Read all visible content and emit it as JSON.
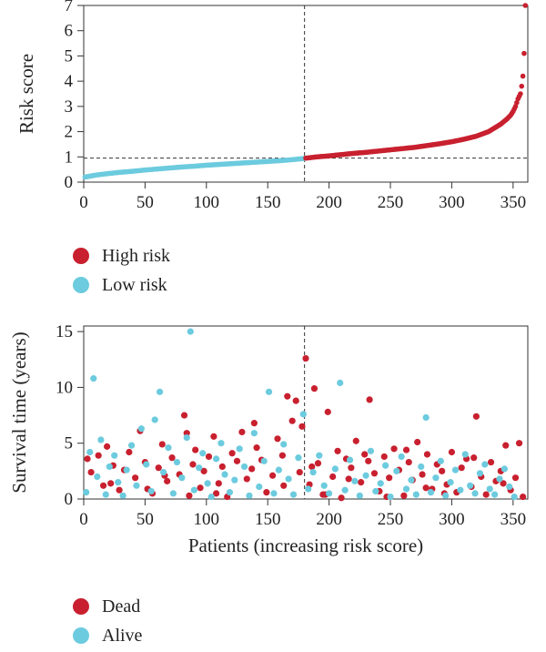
{
  "colors": {
    "high": "#c8202f",
    "low": "#6ccbde",
    "dead": "#c8202f",
    "alive": "#6ccbde"
  },
  "legend_top": [
    {
      "label": "High risk",
      "color_key": "high"
    },
    {
      "label": "Low risk",
      "color_key": "low"
    }
  ],
  "legend_bottom": [
    {
      "label": "Dead",
      "color_key": "dead"
    },
    {
      "label": "Alive",
      "color_key": "alive"
    }
  ],
  "chart_data": [
    {
      "type": "scatter",
      "ylabel": "Risk score",
      "xlabel": "",
      "xlim": [
        0,
        362
      ],
      "ylim": [
        0,
        7
      ],
      "xticks": [
        0,
        50,
        100,
        150,
        200,
        250,
        300,
        350
      ],
      "yticks": [
        0,
        1,
        2,
        3,
        4,
        5,
        6,
        7
      ],
      "cutoff_x": 180,
      "cutoff_y": 0.95,
      "series": [
        {
          "name": "Low risk",
          "color_key": "low",
          "x": [
            1,
            10,
            20,
            30,
            40,
            50,
            60,
            70,
            80,
            90,
            100,
            110,
            120,
            130,
            140,
            150,
            160,
            170,
            180
          ],
          "y": [
            0.2,
            0.28,
            0.34,
            0.39,
            0.43,
            0.48,
            0.52,
            0.56,
            0.6,
            0.63,
            0.67,
            0.7,
            0.73,
            0.76,
            0.79,
            0.82,
            0.85,
            0.89,
            0.94
          ]
        },
        {
          "name": "High risk",
          "color_key": "high",
          "x": [
            181,
            190,
            200,
            210,
            220,
            230,
            240,
            250,
            260,
            270,
            280,
            290,
            300,
            310,
            320,
            330,
            335,
            340,
            345,
            348,
            350,
            352,
            354,
            356,
            357,
            358,
            359,
            360
          ],
          "y": [
            0.95,
            1.0,
            1.04,
            1.09,
            1.14,
            1.18,
            1.23,
            1.28,
            1.33,
            1.38,
            1.45,
            1.52,
            1.6,
            1.7,
            1.82,
            2.0,
            2.15,
            2.3,
            2.5,
            2.65,
            2.8,
            3.0,
            3.3,
            3.5,
            3.8,
            4.2,
            5.1,
            7.0
          ]
        }
      ]
    },
    {
      "type": "scatter",
      "ylabel": "Survival time (years)",
      "xlabel": "Patients (increasing risk score)",
      "xlim": [
        0,
        362
      ],
      "ylim": [
        0,
        15.5
      ],
      "xticks": [
        0,
        50,
        100,
        150,
        200,
        250,
        300,
        350
      ],
      "yticks": [
        0,
        5,
        10,
        15
      ],
      "cutoff_x": 180,
      "series": [
        {
          "name": "Dead",
          "color_key": "dead",
          "x": [
            3,
            6,
            12,
            16,
            19,
            24,
            29,
            33,
            37,
            42,
            46,
            50,
            56,
            61,
            64,
            68,
            72,
            78,
            82,
            86,
            89,
            91,
            95,
            98,
            102,
            106,
            110,
            113,
            117,
            121,
            125,
            129,
            133,
            137,
            141,
            145,
            149,
            154,
            158,
            162,
            166,
            170,
            173,
            176,
            178,
            181,
            184,
            188,
            191,
            195,
            199,
            203,
            207,
            210,
            214,
            218,
            222,
            226,
            229,
            233,
            237,
            241,
            245,
            249,
            253,
            257,
            261,
            265,
            268,
            272,
            276,
            280,
            284,
            288,
            292,
            296,
            300,
            304,
            308,
            312,
            316,
            320,
            324,
            328,
            332,
            336,
            340,
            344,
            348,
            352,
            355,
            358
          ],
          "y": [
            3.6,
            2.4,
            3.9,
            1.2,
            4.7,
            3.0,
            0.8,
            2.6,
            4.2,
            1.9,
            6.1,
            3.3,
            0.5,
            2.8,
            4.9,
            1.6,
            3.7,
            2.2,
            7.5,
            0.3,
            3.1,
            4.4,
            1.0,
            2.5,
            3.8,
            5.6,
            1.4,
            2.9,
            0.2,
            4.1,
            3.4,
            6.0,
            1.8,
            2.7,
            4.6,
            3.5,
            0.6,
            2.1,
            5.4,
            3.9,
            9.2,
            7.0,
            8.8,
            2.4,
            6.5,
            12.6,
            1.3,
            9.9,
            3.2,
            0.4,
            7.8,
            2.0,
            4.3,
            0.1,
            3.6,
            2.8,
            5.2,
            1.5,
            4.0,
            8.9,
            2.3,
            0.7,
            3.8,
            1.9,
            4.5,
            2.6,
            0.3,
            3.3,
            1.7,
            5.1,
            2.2,
            4.0,
            0.9,
            3.1,
            2.5,
            1.3,
            4.2,
            0.6,
            2.8,
            3.6,
            1.1,
            7.4,
            2.0,
            0.4,
            3.3,
            1.6,
            2.5,
            4.8,
            0.8,
            1.9,
            5.0,
            0.2
          ],
          "extra_x": [
            22,
            52,
            66,
            84,
            108,
            139,
            163,
            186,
            197,
            216,
            232,
            247,
            263,
            279,
            294,
            318,
            342
          ],
          "extra_y": [
            1.4,
            0.9,
            2.1,
            5.9,
            0.5,
            6.8,
            1.2,
            2.9,
            0.4,
            1.8,
            3.4,
            0.2,
            4.4,
            1.0,
            0.5,
            3.7,
            1.4
          ]
        },
        {
          "name": "Alive",
          "color_key": "alive",
          "x": [
            2,
            5,
            8,
            11,
            14,
            18,
            21,
            25,
            28,
            32,
            35,
            39,
            43,
            47,
            51,
            55,
            58,
            62,
            65,
            69,
            73,
            76,
            80,
            84,
            87,
            90,
            94,
            97,
            101,
            104,
            108,
            112,
            115,
            119,
            123,
            127,
            131,
            135,
            139,
            143,
            147,
            151,
            155,
            159,
            163,
            167,
            171,
            175,
            179,
            183,
            187,
            192,
            196,
            200,
            205,
            209,
            213,
            217,
            221,
            225,
            230,
            234,
            238,
            242,
            246,
            250,
            255,
            259,
            263,
            267,
            271,
            275,
            279,
            283,
            287,
            291,
            295,
            299,
            303,
            307,
            311,
            315,
            319,
            323,
            327,
            331,
            335,
            339,
            343,
            347,
            351
          ],
          "y": [
            0.6,
            4.2,
            10.8,
            2.0,
            5.3,
            0.4,
            2.9,
            3.9,
            1.5,
            0.3,
            2.6,
            4.8,
            1.2,
            6.3,
            3.1,
            0.7,
            7.1,
            9.6,
            2.4,
            4.6,
            0.5,
            3.3,
            1.9,
            5.5,
            15.0,
            0.8,
            2.8,
            4.1,
            1.4,
            0.2,
            3.6,
            5.0,
            2.2,
            0.6,
            1.7,
            4.5,
            2.9,
            0.3,
            5.9,
            1.1,
            3.4,
            9.6,
            0.5,
            2.6,
            4.9,
            1.8,
            0.4,
            3.7,
            7.6,
            0.9,
            2.4,
            3.9,
            1.2,
            0.5,
            2.7,
            10.4,
            0.8,
            3.5,
            1.6,
            0.3,
            2.1,
            4.3,
            0.7,
            1.4,
            3.0,
            0.2,
            2.5,
            3.8,
            0.9,
            1.7,
            0.4,
            2.9,
            7.3,
            0.6,
            1.9,
            3.4,
            0.3,
            1.5,
            2.6,
            0.8,
            4.0,
            1.2,
            0.5,
            2.3,
            3.1,
            0.9,
            0.4,
            1.8,
            2.7,
            1.1,
            0.2
          ]
        }
      ]
    }
  ]
}
